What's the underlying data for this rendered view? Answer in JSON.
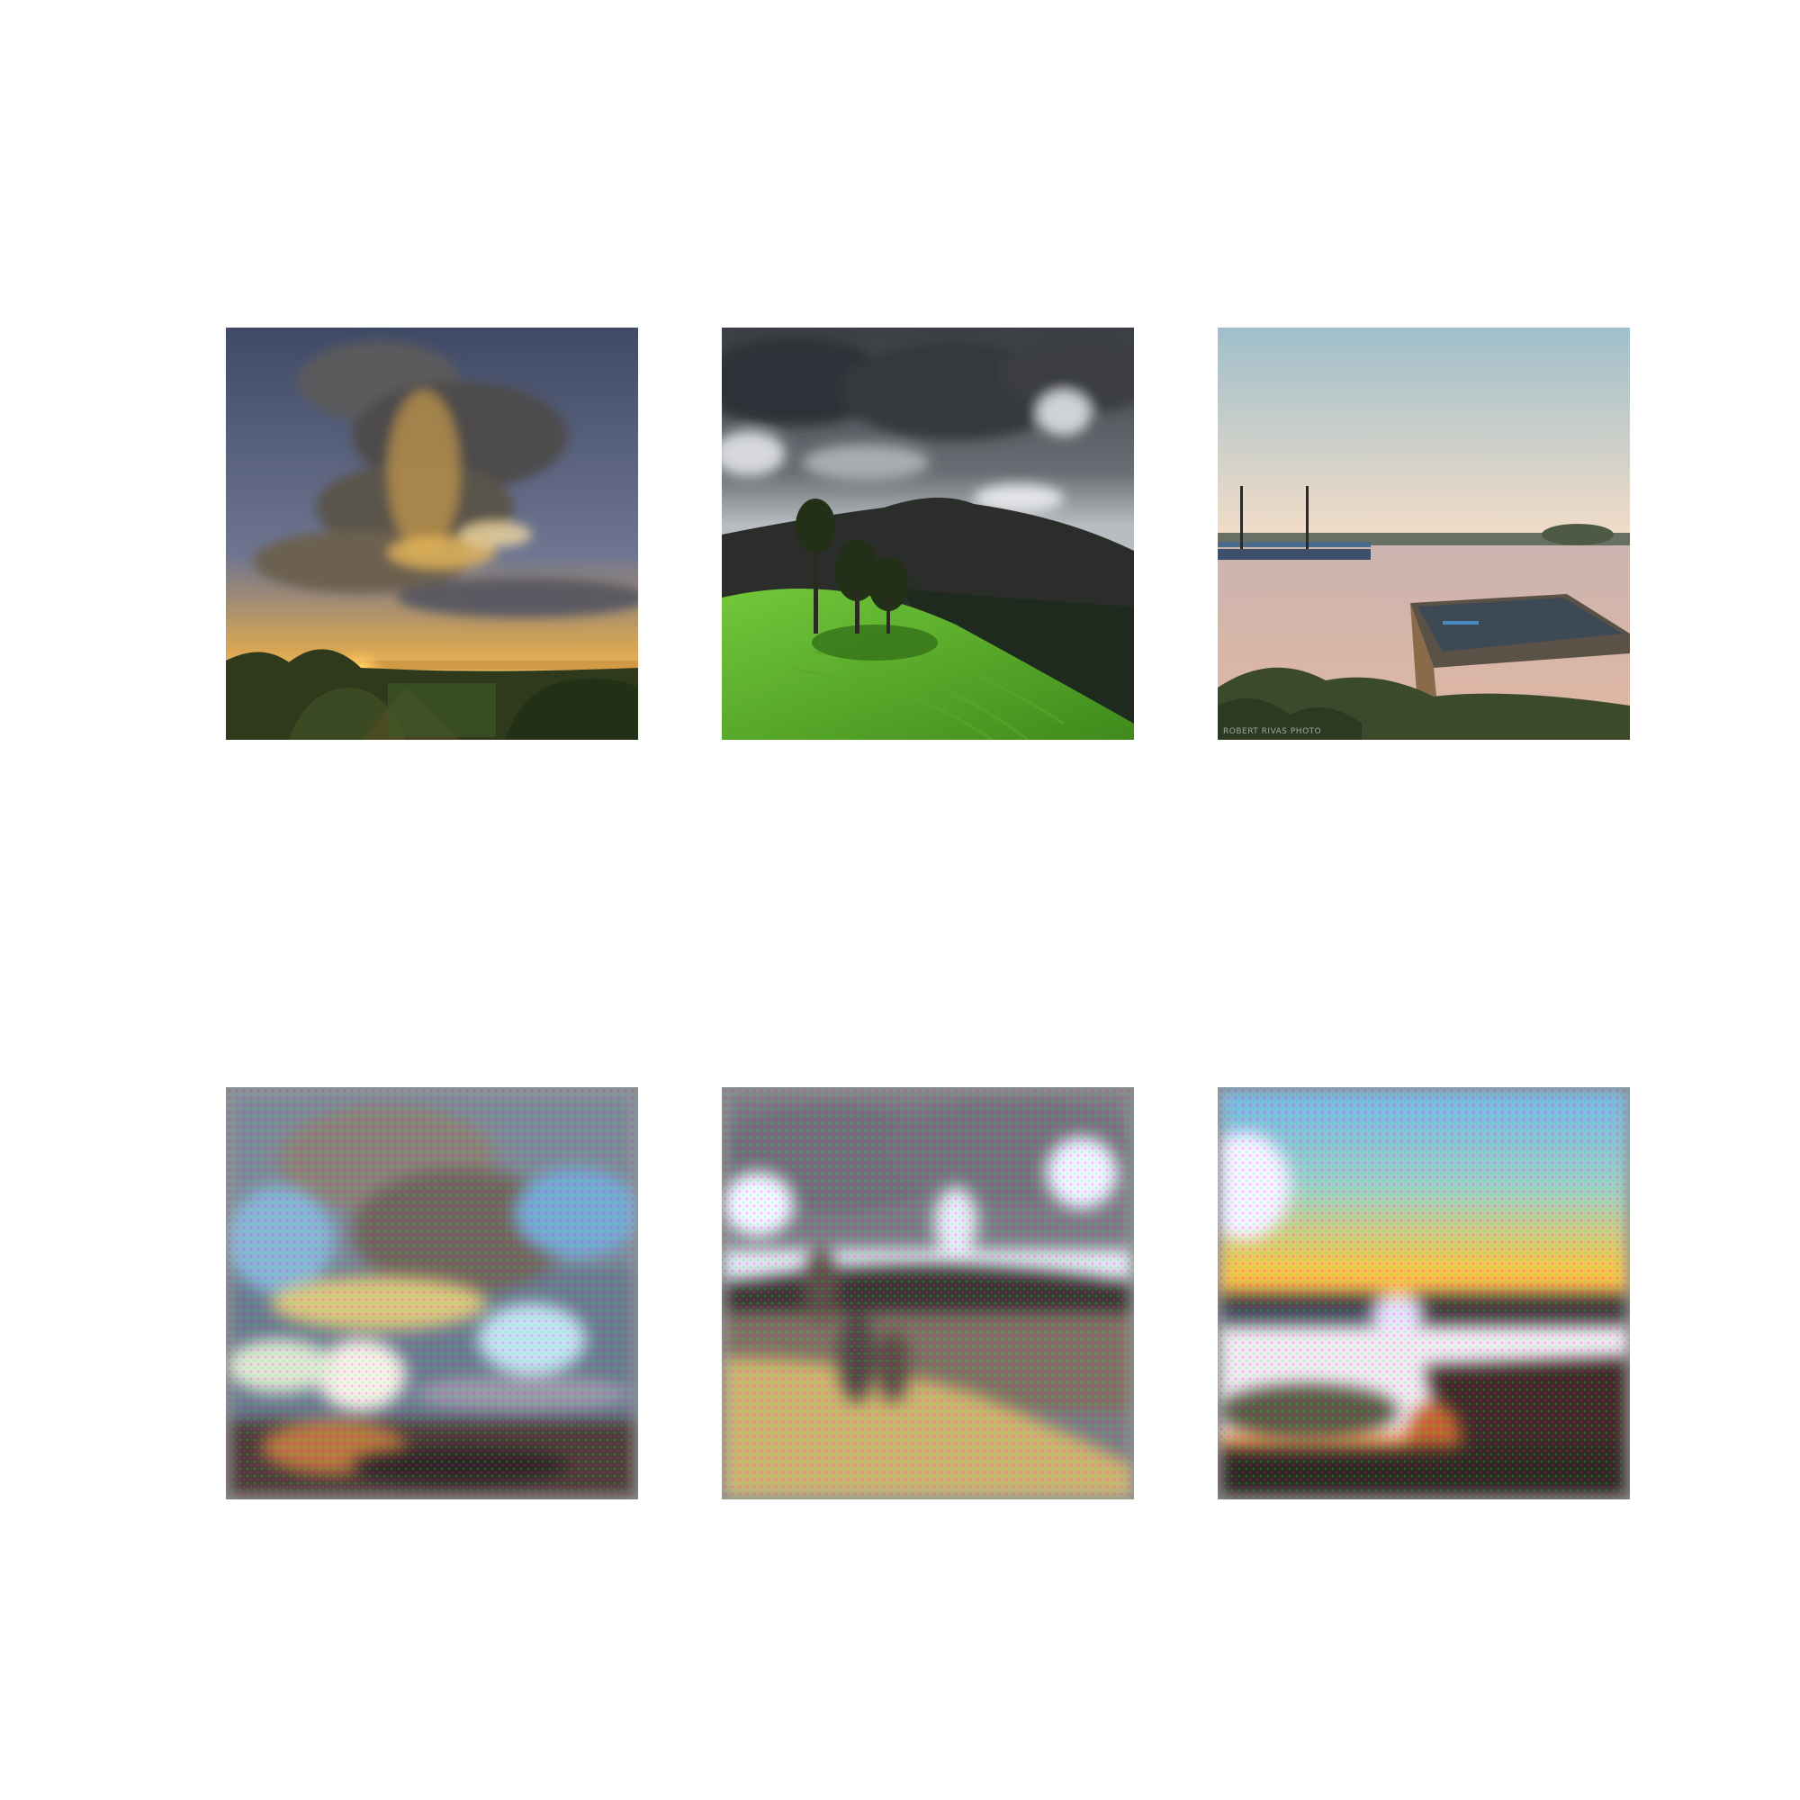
{
  "figure": {
    "rows": 2,
    "columns": 3,
    "panels": [
      {
        "row": 1,
        "col": 1,
        "scene": "sunset-clouds",
        "colors": {
          "sky": "#4f5a78",
          "glow": "#f2b24a",
          "ground": "#2f3a1c"
        }
      },
      {
        "row": 1,
        "col": 2,
        "scene": "green-hill-storm",
        "colors": {
          "sky": "#5d6168",
          "mountain": "#2a2d2a",
          "grass": "#62b52e"
        }
      },
      {
        "row": 1,
        "col": 3,
        "scene": "lake-boat-dusk",
        "colors": {
          "sky": "#a7c1c9",
          "glow": "#f0c6a8",
          "water": "#d8b3a8"
        },
        "watermark": "ROBERT RIVAS PHOTO"
      },
      {
        "row": 2,
        "col": 1,
        "scene": "sunset-clouds-reconstruction",
        "colors": {
          "sky": "#6a8db0",
          "glow": "#f4e27a"
        }
      },
      {
        "row": 2,
        "col": 2,
        "scene": "green-hill-storm-reconstruction",
        "colors": {
          "sky": "#7e8082",
          "ground": "#c8b37a"
        }
      },
      {
        "row": 2,
        "col": 3,
        "scene": "lake-boat-dusk-reconstruction",
        "colors": {
          "sky": "#7fb3d9",
          "glow": "#f2c85a"
        }
      }
    ]
  }
}
